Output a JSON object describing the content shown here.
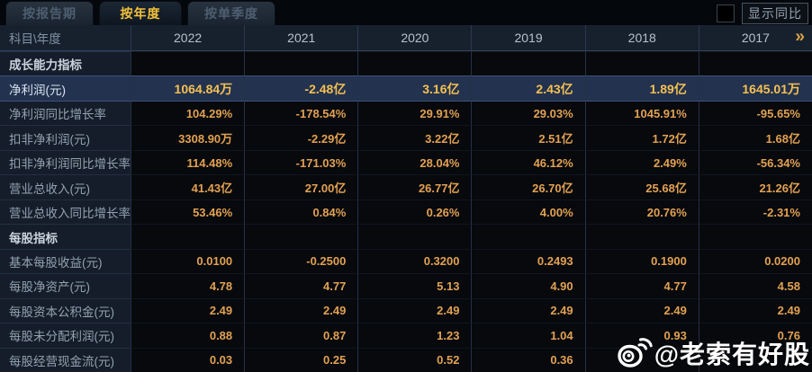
{
  "tabs": [
    {
      "label": "按报告期",
      "active": false
    },
    {
      "label": "按年度",
      "active": true
    },
    {
      "label": "按单季度",
      "active": false
    }
  ],
  "controls": {
    "show_yoy_label": "显示同比"
  },
  "table": {
    "corner_label": "科目\\年度",
    "years": [
      "2022",
      "2021",
      "2020",
      "2019",
      "2018",
      "2017"
    ],
    "more_icon": "»",
    "rows": [
      {
        "type": "section",
        "label": "成长能力指标",
        "values": [
          "",
          "",
          "",
          "",
          "",
          ""
        ]
      },
      {
        "type": "data",
        "label": "净利润(元)",
        "highlight": true,
        "values": [
          "1064.84万",
          "-2.48亿",
          "3.16亿",
          "2.43亿",
          "1.89亿",
          "1645.01万"
        ]
      },
      {
        "type": "data",
        "label": "净利润同比增长率",
        "values": [
          "104.29%",
          "-178.54%",
          "29.91%",
          "29.03%",
          "1045.91%",
          "-95.65%"
        ]
      },
      {
        "type": "data",
        "label": "扣非净利润(元)",
        "values": [
          "3308.90万",
          "-2.29亿",
          "3.22亿",
          "2.51亿",
          "1.72亿",
          "1.68亿"
        ]
      },
      {
        "type": "data",
        "label": "扣非净利润同比增长率",
        "values": [
          "114.48%",
          "-171.03%",
          "28.04%",
          "46.12%",
          "2.49%",
          "-56.34%"
        ]
      },
      {
        "type": "data",
        "label": "营业总收入(元)",
        "values": [
          "41.43亿",
          "27.00亿",
          "26.77亿",
          "26.70亿",
          "25.68亿",
          "21.26亿"
        ]
      },
      {
        "type": "data",
        "label": "营业总收入同比增长率",
        "values": [
          "53.46%",
          "0.84%",
          "0.26%",
          "4.00%",
          "20.76%",
          "-2.31%"
        ]
      },
      {
        "type": "section",
        "label": "每股指标",
        "values": [
          "",
          "",
          "",
          "",
          "",
          ""
        ]
      },
      {
        "type": "data",
        "label": "基本每股收益(元)",
        "values": [
          "0.0100",
          "-0.2500",
          "0.3200",
          "0.2493",
          "0.1900",
          "0.0200"
        ]
      },
      {
        "type": "data",
        "label": "每股净资产(元)",
        "values": [
          "4.78",
          "4.77",
          "5.13",
          "4.90",
          "4.77",
          "4.58"
        ]
      },
      {
        "type": "data",
        "label": "每股资本公积金(元)",
        "values": [
          "2.49",
          "2.49",
          "2.49",
          "2.49",
          "2.49",
          "2.49"
        ]
      },
      {
        "type": "data",
        "label": "每股未分配利润(元)",
        "values": [
          "0.88",
          "0.87",
          "1.23",
          "1.04",
          "0.93",
          "0.76"
        ]
      },
      {
        "type": "data",
        "label": "每股经营现金流(元)",
        "values": [
          "0.03",
          "0.25",
          "0.52",
          "0.36",
          "",
          ""
        ]
      }
    ]
  },
  "watermark": {
    "text": "@老索有好股",
    "icon": "weibo-logo"
  },
  "colors": {
    "accent_gold": "#e2a152",
    "highlight_gold": "#f5c052",
    "active_tab_text": "#f2c13c",
    "highlight_row_bg": "#22324f",
    "panel_bg": "#141d29",
    "value_bg": "#07090d"
  }
}
